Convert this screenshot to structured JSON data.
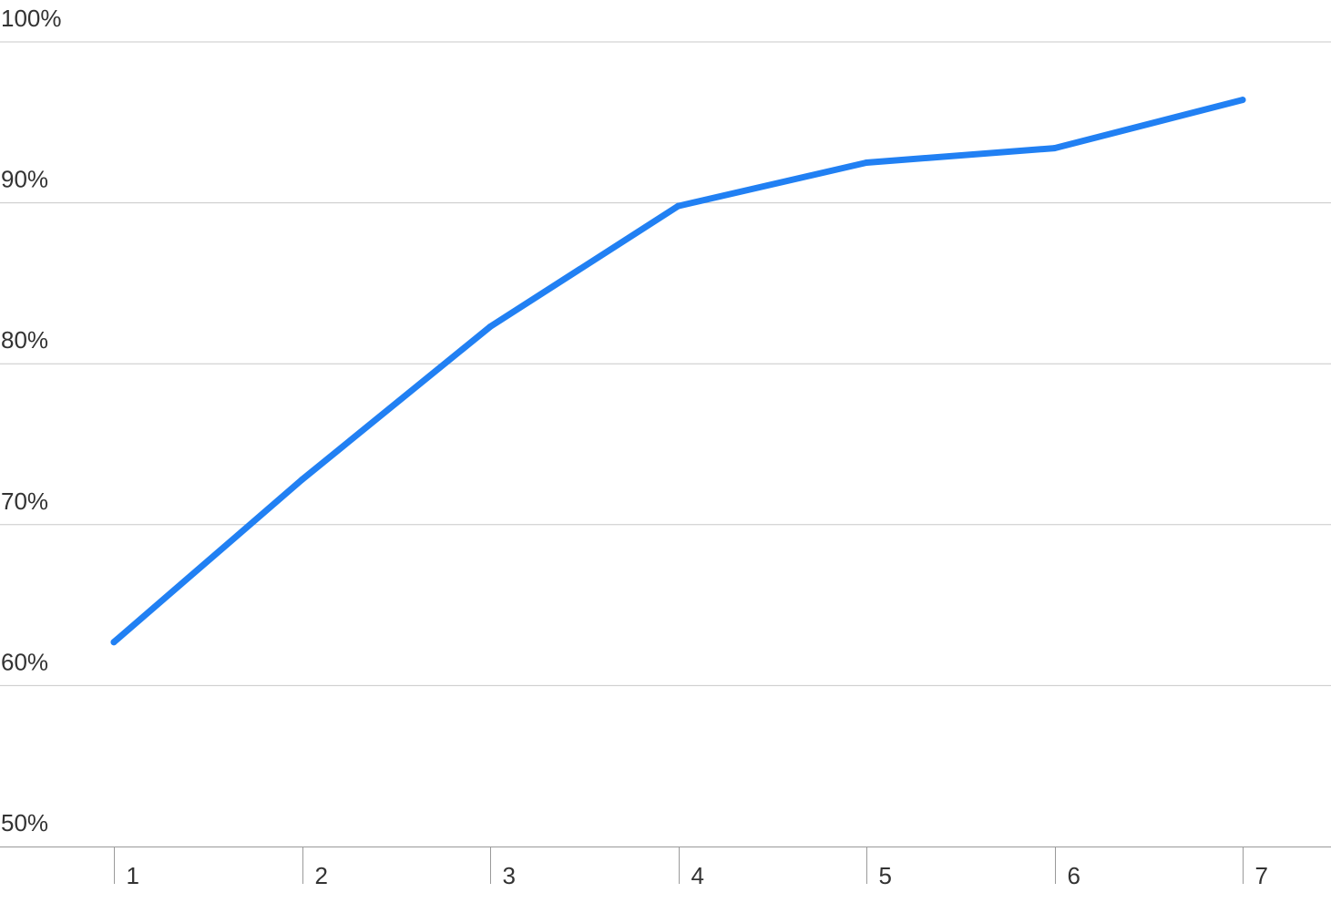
{
  "chart_data": {
    "type": "line",
    "categories": [
      "1",
      "2",
      "3",
      "4",
      "5",
      "6",
      "7"
    ],
    "series": [
      {
        "values": [
          62.7,
          72.8,
          82.3,
          89.8,
          92.5,
          93.4,
          96.4
        ]
      }
    ],
    "ylim": [
      50,
      100
    ],
    "y_ticks": [
      100,
      90,
      80,
      70,
      60,
      50
    ],
    "y_tick_labels": [
      "100%",
      "90%",
      "80%",
      "70%",
      "60%",
      "50%"
    ],
    "x_tick_labels": [
      "1",
      "2",
      "3",
      "4",
      "5",
      "6",
      "7"
    ],
    "title": "",
    "xlabel": "",
    "ylabel": "",
    "grid": true,
    "legend": "none",
    "colors": {
      "series": "#2180f3",
      "grid": "#c8c8c8",
      "text": "#333333"
    }
  }
}
